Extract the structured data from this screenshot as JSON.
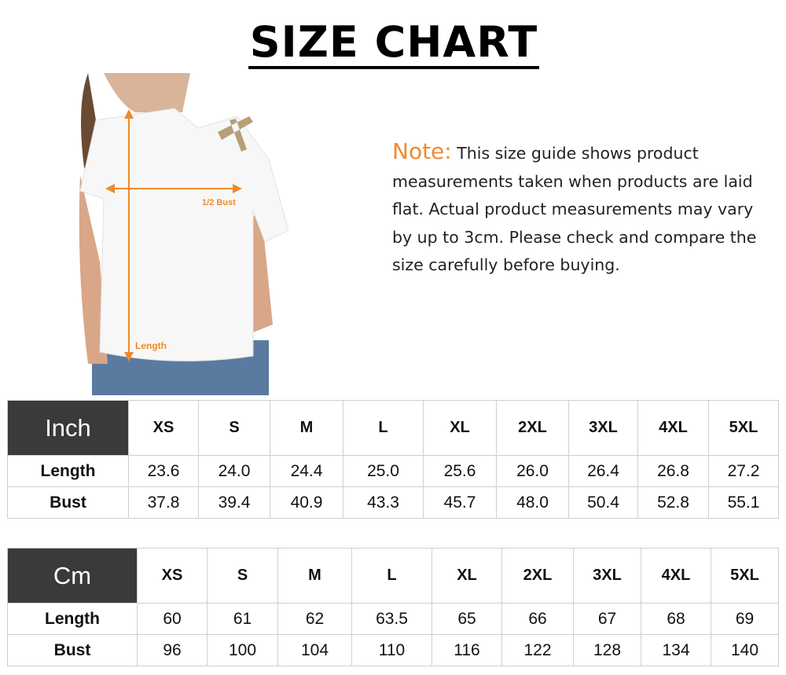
{
  "title": "SIZE CHART",
  "photo": {
    "bust_label": "1/2 Bust",
    "length_label": "Length",
    "accent": "#f08a2c"
  },
  "note": {
    "label": "Note:",
    "text": "This size guide shows product measurements taken when products are laid flat. Actual product measurements may vary by up to 3cm. Please check and compare the size carefully before buying."
  },
  "sizes": [
    "XS",
    "S",
    "M",
    "L",
    "XL",
    "2XL",
    "3XL",
    "4XL",
    "5XL"
  ],
  "inch": {
    "unit": "Inch",
    "rows": [
      {
        "label": "Length",
        "values": [
          "23.6",
          "24.0",
          "24.4",
          "25.0",
          "25.6",
          "26.0",
          "26.4",
          "26.8",
          "27.2"
        ]
      },
      {
        "label": "Bust",
        "values": [
          "37.8",
          "39.4",
          "40.9",
          "43.3",
          "45.7",
          "48.0",
          "50.4",
          "52.8",
          "55.1"
        ]
      }
    ]
  },
  "cm": {
    "unit": "Cm",
    "rows": [
      {
        "label": "Length",
        "values": [
          "60",
          "61",
          "62",
          "63.5",
          "65",
          "66",
          "67",
          "68",
          "69"
        ]
      },
      {
        "label": "Bust",
        "values": [
          "96",
          "100",
          "104",
          "110",
          "116",
          "122",
          "128",
          "134",
          "140"
        ]
      }
    ]
  }
}
